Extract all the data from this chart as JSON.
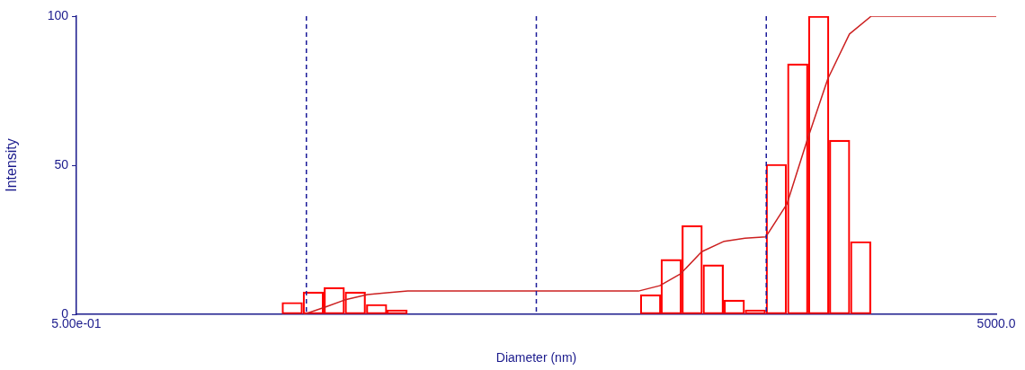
{
  "chart_data": {
    "type": "bar",
    "xlabel": "Diameter (nm)",
    "ylabel": "Intensity",
    "log": "x",
    "grid": false,
    "legend": false,
    "x": [
      4.34,
      5.36,
      6.61,
      8.16,
      10.1,
      12.4,
      157,
      193,
      238,
      294,
      363,
      448,
      553,
      685,
      845,
      1042,
      1287
    ],
    "values": [
      4,
      7.5,
      9,
      7.5,
      3.3,
      1.5,
      6.6,
      18.4,
      29.8,
      16.6,
      4.8,
      1.5,
      50.3,
      84,
      100,
      58.4,
      24.4
    ],
    "color": "#ff0000",
    "series": [
      {
        "type": "line",
        "color": "#cc2020",
        "x": [
          4.88,
          6.03,
          7.46,
          9.22,
          11.2,
          13.8,
          139,
          172,
          212,
          262,
          328,
          404,
          498,
          615,
          750,
          926,
          1150,
          1430,
          5000
        ],
        "values": [
          0,
          2.4,
          5,
          6.6,
          7.2,
          7.8,
          7.8,
          9.6,
          13.6,
          21,
          24.5,
          25.5,
          26,
          37,
          58,
          79,
          94,
          100,
          100
        ]
      }
    ],
    "xlim": [
      0.5,
      5000
    ],
    "xticks": [
      {
        "value": 0.5,
        "label": "5.00e-01"
      },
      {
        "value": 5000,
        "label": "5000.0"
      }
    ],
    "ylim": [
      0,
      100
    ],
    "yticks": [
      0,
      50,
      100
    ],
    "ref_lines": [
      {
        "axis": "x",
        "value": 5,
        "color": "#1a1a99",
        "line_style": "dashed"
      },
      {
        "axis": "x",
        "value": 50,
        "color": "#1a1a99",
        "line_style": "dashed"
      },
      {
        "axis": "x",
        "value": 500,
        "color": "#1a1a99",
        "line_style": "dashed"
      }
    ]
  }
}
